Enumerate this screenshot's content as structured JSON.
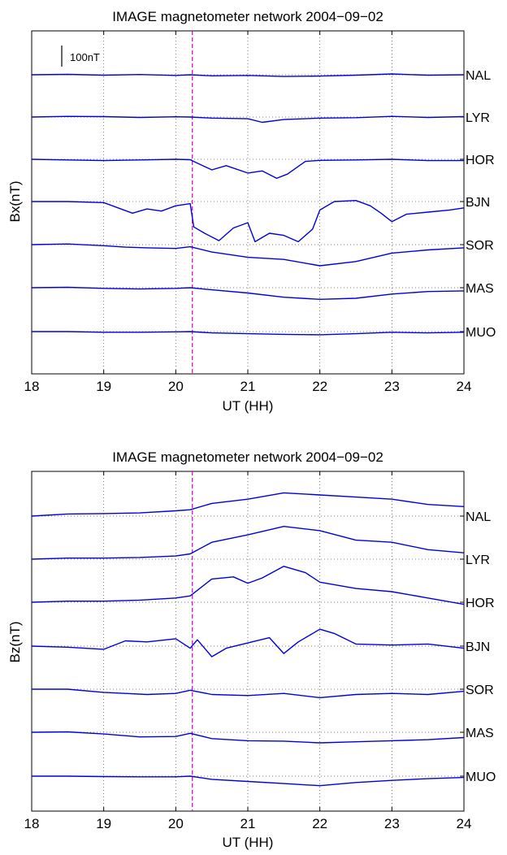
{
  "chart_data": [
    {
      "type": "line",
      "title": "IMAGE magnetometer network 2004−09−02",
      "xlabel": "UT (HH)",
      "ylabel": "Bx(nT)",
      "xlim": [
        18,
        24
      ],
      "xticks": [
        "18",
        "19",
        "20",
        "21",
        "22",
        "23",
        "24"
      ],
      "grid": true,
      "scale_bar_label": "100nT",
      "scale_bar_nT": 100,
      "marker_time": 20.23,
      "station_spacing_nT": 200,
      "series": [
        {
          "name": "NAL",
          "x": [
            18,
            18.5,
            19,
            19.5,
            20,
            20.2,
            20.5,
            21,
            21.5,
            22,
            22.5,
            23,
            23.5,
            24
          ],
          "values": [
            0,
            2,
            -2,
            1,
            -3,
            0,
            -5,
            -3,
            -8,
            -6,
            -2,
            4,
            -2,
            0
          ]
        },
        {
          "name": "LYR",
          "x": [
            18,
            18.5,
            19,
            19.5,
            20,
            20.2,
            20.5,
            21,
            21.2,
            21.5,
            22,
            22.5,
            23,
            23.5,
            24
          ],
          "values": [
            0,
            3,
            2,
            -2,
            1,
            0,
            -5,
            -8,
            -25,
            -12,
            -5,
            -3,
            3,
            -2,
            2
          ]
        },
        {
          "name": "HOR",
          "x": [
            18,
            18.5,
            19,
            19.5,
            20,
            20.2,
            20.3,
            20.5,
            20.7,
            21,
            21.2,
            21.4,
            21.55,
            21.8,
            22,
            22.5,
            23,
            23.5,
            24
          ],
          "values": [
            0,
            -3,
            -6,
            -3,
            0,
            -2,
            -18,
            -50,
            -30,
            -65,
            -55,
            -90,
            -70,
            -10,
            -5,
            -3,
            0,
            -6,
            -6
          ]
        },
        {
          "name": "BJN",
          "x": [
            18,
            18.5,
            19,
            19.2,
            19.4,
            19.6,
            19.8,
            20,
            20.2,
            20.25,
            20.4,
            20.6,
            20.8,
            21,
            21.1,
            21.3,
            21.5,
            21.7,
            21.9,
            22,
            22.2,
            22.5,
            22.7,
            22.85,
            23,
            23.2,
            23.5,
            23.8,
            24
          ],
          "values": [
            0,
            0,
            -5,
            -30,
            -55,
            -35,
            -45,
            -20,
            -10,
            -120,
            -150,
            -185,
            -125,
            -100,
            -190,
            -150,
            -160,
            -190,
            -130,
            -40,
            0,
            5,
            -20,
            -55,
            -95,
            -60,
            -50,
            -40,
            -30
          ]
        },
        {
          "name": "SOR",
          "x": [
            18,
            18.5,
            19,
            19.3,
            19.6,
            20,
            20.2,
            20.5,
            21,
            21.5,
            22,
            22.5,
            23,
            23.5,
            24
          ],
          "values": [
            0,
            3,
            -5,
            -12,
            -15,
            -18,
            -10,
            -35,
            -60,
            -70,
            -100,
            -80,
            -40,
            -25,
            -15
          ]
        },
        {
          "name": "MAS",
          "x": [
            18,
            18.5,
            19,
            19.5,
            20,
            20.2,
            20.5,
            21,
            21.5,
            22,
            22.5,
            23,
            23.5,
            24
          ],
          "values": [
            0,
            2,
            -3,
            -6,
            -3,
            0,
            -10,
            -25,
            -45,
            -55,
            -50,
            -30,
            -18,
            -15
          ]
        },
        {
          "name": "MUO",
          "x": [
            18,
            18.5,
            19,
            19.5,
            20,
            20.2,
            20.5,
            21,
            21.5,
            22,
            22.5,
            23,
            23.5,
            24
          ],
          "values": [
            0,
            0,
            -3,
            -3,
            -1,
            0,
            -6,
            -10,
            -13,
            -15,
            -10,
            -3,
            -6,
            -3
          ]
        }
      ]
    },
    {
      "type": "line",
      "title": "IMAGE magnetometer network 2004−09−02",
      "xlabel": "UT (HH)",
      "ylabel": "Bz(nT)",
      "xlim": [
        18,
        24
      ],
      "xticks": [
        "18",
        "19",
        "20",
        "21",
        "22",
        "23",
        "24"
      ],
      "grid": true,
      "marker_time": 20.23,
      "station_spacing_nT": 200,
      "series": [
        {
          "name": "NAL",
          "x": [
            18,
            18.5,
            19,
            19.5,
            20,
            20.2,
            20.5,
            21,
            21.5,
            22,
            22.5,
            23,
            23.5,
            24
          ],
          "values": [
            0,
            10,
            12,
            15,
            25,
            30,
            60,
            80,
            110,
            100,
            90,
            80,
            55,
            45
          ]
        },
        {
          "name": "LYR",
          "x": [
            18,
            18.5,
            19,
            19.5,
            20,
            20.2,
            20.5,
            21,
            21.5,
            22,
            22.5,
            23,
            23.5,
            24
          ],
          "values": [
            0,
            5,
            5,
            8,
            15,
            25,
            80,
            115,
            155,
            135,
            90,
            80,
            45,
            30
          ]
        },
        {
          "name": "HOR",
          "x": [
            18,
            18.5,
            19,
            19.5,
            20,
            20.2,
            20.5,
            20.8,
            21,
            21.2,
            21.5,
            21.8,
            22,
            22.5,
            23,
            23.5,
            24
          ],
          "values": [
            0,
            5,
            5,
            10,
            20,
            30,
            110,
            120,
            90,
            115,
            170,
            140,
            95,
            65,
            50,
            20,
            -10
          ]
        },
        {
          "name": "BJN",
          "x": [
            18,
            18.5,
            19,
            19.3,
            19.6,
            20,
            20.2,
            20.3,
            20.5,
            20.7,
            21,
            21.3,
            21.5,
            21.7,
            22,
            22.2,
            22.5,
            23,
            23.5,
            24
          ],
          "values": [
            0,
            -5,
            -15,
            25,
            20,
            35,
            -10,
            30,
            -50,
            -10,
            15,
            40,
            -35,
            20,
            80,
            60,
            10,
            5,
            10,
            -10
          ]
        },
        {
          "name": "SOR",
          "x": [
            18,
            18.5,
            19,
            19.3,
            19.6,
            20,
            20.2,
            20.5,
            21,
            21.5,
            22,
            22.5,
            23,
            23.5,
            24
          ],
          "values": [
            0,
            0,
            -15,
            -20,
            -25,
            -20,
            -5,
            -25,
            -30,
            -20,
            -40,
            -25,
            -20,
            -25,
            -10
          ]
        },
        {
          "name": "MAS",
          "x": [
            18,
            18.5,
            19,
            19.5,
            20,
            20.2,
            20.5,
            21,
            21.5,
            22,
            22.5,
            23,
            23.5,
            24
          ],
          "values": [
            0,
            2,
            -8,
            -22,
            -20,
            -5,
            -30,
            -40,
            -42,
            -50,
            -45,
            -40,
            -35,
            -25
          ]
        },
        {
          "name": "MUO",
          "x": [
            18,
            18.5,
            19,
            19.5,
            20,
            20.2,
            20.5,
            21,
            21.5,
            22,
            22.5,
            23,
            23.5,
            24
          ],
          "values": [
            0,
            0,
            -2,
            -3,
            -3,
            0,
            -15,
            -25,
            -35,
            -45,
            -30,
            -20,
            -12,
            -6
          ]
        }
      ]
    }
  ]
}
